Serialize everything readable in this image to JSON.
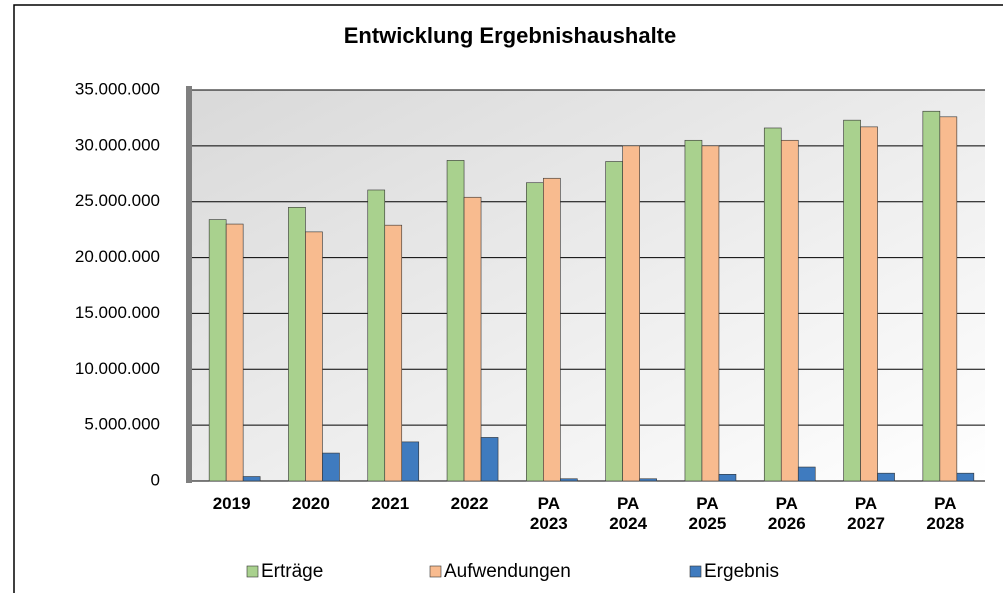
{
  "chart_data": {
    "type": "bar",
    "title": "Entwicklung Ergebnishaushalte",
    "categories": [
      "2019",
      "2020",
      "2021",
      "2022",
      "PA 2023",
      "PA 2024",
      "PA 2025",
      "PA 2026",
      "PA 2027",
      "PA 2028"
    ],
    "series": [
      {
        "name": "Erträge",
        "color": "#a9d18e",
        "values": [
          23400000,
          24500000,
          26050000,
          28700000,
          26700000,
          28600000,
          30500000,
          31600000,
          32300000,
          33100000
        ]
      },
      {
        "name": "Aufwendungen",
        "color": "#f8bb8f",
        "values": [
          23000000,
          22300000,
          22900000,
          25400000,
          27100000,
          30000000,
          30000000,
          30500000,
          31700000,
          32600000
        ]
      },
      {
        "name": "Ergebnis",
        "color": "#3f7bbf",
        "values": [
          400000,
          2500000,
          3500000,
          3900000,
          200000,
          200000,
          600000,
          1250000,
          700000,
          700000
        ]
      }
    ],
    "ylim": [
      0,
      35000000
    ],
    "yticks": [
      0,
      {
        "value": 5000000,
        "label": "5.000.000"
      },
      {
        "value": 10000000,
        "label": "10.000.000"
      },
      {
        "value": 15000000,
        "label": "15.000.000"
      },
      {
        "value": 20000000,
        "label": "20.000.000"
      },
      {
        "value": 25000000,
        "label": "25.000.000"
      },
      {
        "value": 30000000,
        "label": "30.000.000"
      },
      {
        "value": 35000000,
        "label": "35.000.000"
      }
    ],
    "grid": true,
    "legend": "bottom"
  }
}
